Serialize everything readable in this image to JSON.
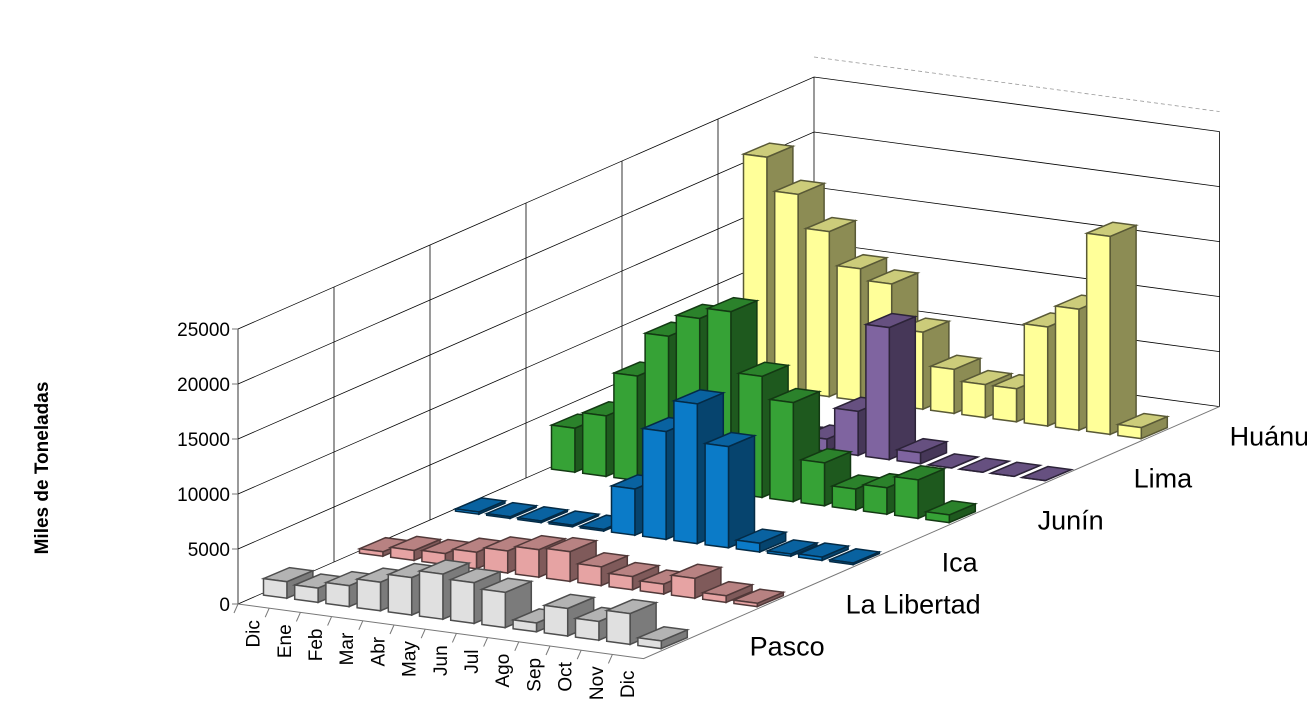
{
  "chart_data": {
    "type": "bar",
    "subtype": "3d-column",
    "title": "",
    "ylabel": "Miles de Toneladas",
    "xlabel": "",
    "ylim": [
      0,
      25000
    ],
    "yticks": [
      "0",
      "5000",
      "10000",
      "15000",
      "20000",
      "25000"
    ],
    "grid": true,
    "legend": "none",
    "categories": [
      "Dic",
      "Ene",
      "Feb",
      "Mar",
      "Abr",
      "May",
      "Jun",
      "Jul",
      "Ago",
      "Sep",
      "Oct",
      "Nov",
      "Dic"
    ],
    "series": [
      {
        "name": "Pasco",
        "color": "#e0e0e0",
        "values": [
          1500,
          1300,
          1900,
          2600,
          3400,
          4100,
          3700,
          3200,
          800,
          2500,
          1700,
          2800,
          700
        ]
      },
      {
        "name": "La Libertad",
        "color": "#e6a3a3",
        "values": [
          400,
          900,
          1000,
          1500,
          2000,
          2500,
          2700,
          1700,
          1200,
          900,
          1800,
          600,
          300
        ]
      },
      {
        "name": "Ica",
        "color": "#0b7bc8",
        "values": [
          200,
          150,
          150,
          150,
          150,
          4200,
          9800,
          12700,
          9200,
          800,
          200,
          300,
          150
        ]
      },
      {
        "name": "Junín",
        "color": "#36a236",
        "values": [
          4000,
          5500,
          9500,
          13500,
          15500,
          16500,
          11000,
          9000,
          3900,
          1900,
          2400,
          3500,
          700
        ]
      },
      {
        "name": "Lima",
        "color": "#7f64a0",
        "values": [
          300,
          5700,
          1100,
          700,
          800,
          1100,
          4000,
          12000,
          1000,
          0,
          0,
          0,
          0
        ]
      },
      {
        "name": "Huánuco",
        "color": "#ffff99",
        "values": [
          21000,
          18000,
          15000,
          12000,
          11000,
          7000,
          4000,
          3000,
          3000,
          9000,
          11000,
          18000,
          1000
        ]
      }
    ]
  }
}
